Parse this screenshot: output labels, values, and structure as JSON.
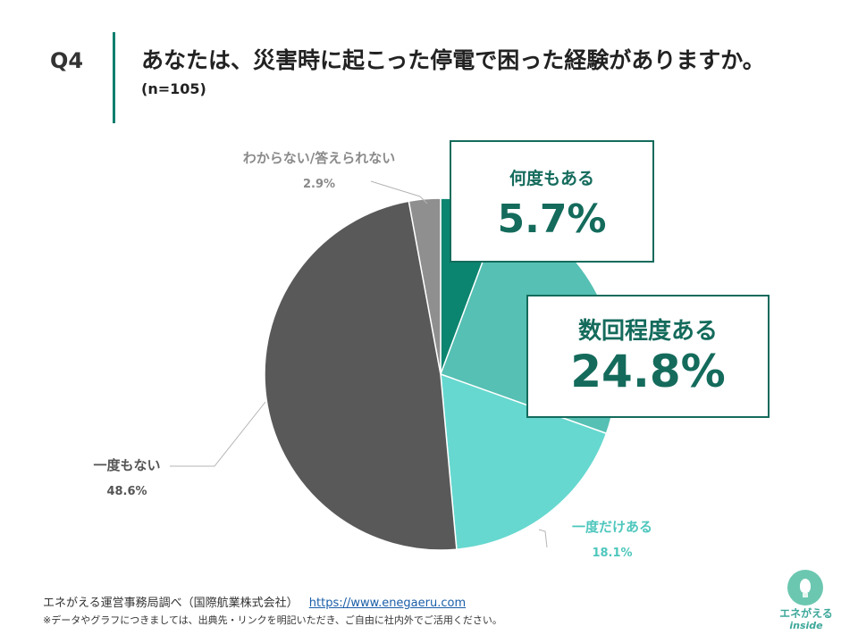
{
  "header": {
    "qnum": "Q4",
    "title": "あなたは、災害時に起こった停電で困った経験がありますか。",
    "sample": "(n=105)"
  },
  "chart_data": {
    "type": "pie",
    "title": "あなたは、災害時に起こった停電で困った経験がありますか。",
    "start": "top",
    "direction": "clockwise",
    "slices": [
      {
        "label": "何度もある",
        "value": 5.7,
        "display": "5.7%",
        "color": "#0b8570"
      },
      {
        "label": "数回程度ある",
        "value": 24.8,
        "display": "24.8%",
        "color": "#55c0b3"
      },
      {
        "label": "一度だけある",
        "value": 18.1,
        "display": "18.1%",
        "color": "#66d8cf"
      },
      {
        "label": "一度もない",
        "value": 48.6,
        "display": "48.6%",
        "color": "#595959"
      },
      {
        "label": "わからない/答えられない",
        "value": 2.9,
        "display": "2.9%",
        "color": "#8f8f8f"
      }
    ]
  },
  "footer": {
    "source": "エネがえる運営事務局調べ（国際航業株式会社）",
    "url": "https://www.enegaeru.com",
    "note": "※データやグラフにつきましては、出典先・リンクを明記いただき、ご自由に社内外でご活用ください。"
  },
  "logo": {
    "name": "エネがえる",
    "sub": "inside",
    "icon": "lightbulb-icon"
  }
}
